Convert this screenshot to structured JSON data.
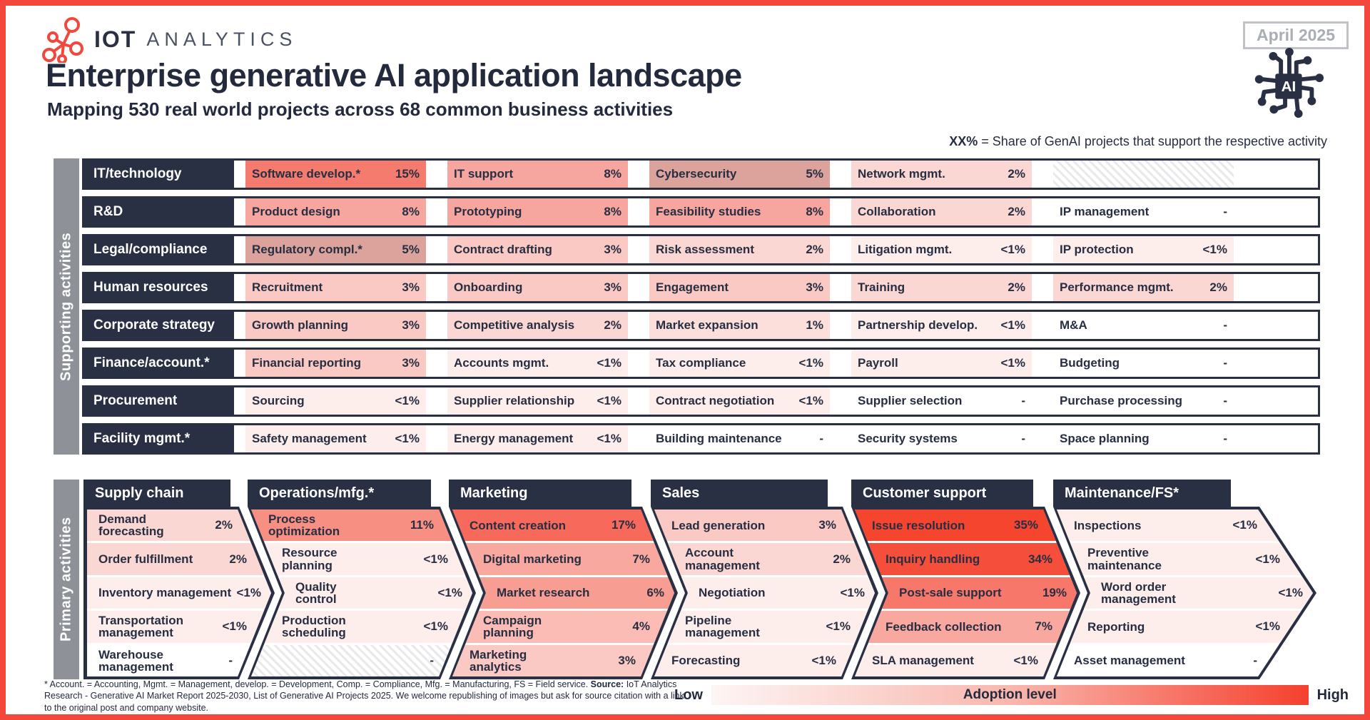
{
  "header": {
    "logo_iot": "IOT",
    "logo_analytics": "ANALYTICS",
    "badge": "April 2025",
    "title": "Enterprise generative AI application landscape",
    "subtitle": "Mapping 530 real world projects across 68 common business activities",
    "note_bold": "XX%",
    "note_rest": " = Share of GenAI projects that support the respective activity",
    "ai_chip_label": "AI"
  },
  "colors": {
    "frame_red": "#f4473b",
    "navy": "#2a3044",
    "gray_bar": "#8e9298",
    "badge_gray": "#a9adb4",
    "legend_gradient_start": "#fdf5f4",
    "legend_gradient_end": "#f5402e"
  },
  "palette": {
    "35%": "#f5452f",
    "34%": "#f54e3a",
    "19%": "#f7786a",
    "17%": "#f6695b",
    "15%": "#f57b6e",
    "11%": "#f79083",
    "8%": "#f6a59f",
    "7%": "#f8a89f",
    "6%": "#f89d92",
    "5%": "#dba39b",
    "4%": "#fabcb5",
    "3%": "#fac9c3",
    "2%": "#fbd7d3",
    "1%": "#fcdfdb",
    "<1%": "#fdedeb",
    "-": "#ffffff"
  },
  "supporting": {
    "section_label": "Supporting activities",
    "rows": [
      {
        "label": "IT/technology",
        "cells": [
          {
            "name": "Software develop.*",
            "value": "15%"
          },
          {
            "name": "IT support",
            "value": "8%"
          },
          {
            "name": "Cybersecurity",
            "value": "5%"
          },
          {
            "name": "Network mgmt.",
            "value": "2%"
          },
          {
            "hatch": true
          }
        ]
      },
      {
        "label": "R&D",
        "cells": [
          {
            "name": "Product design",
            "value": "8%"
          },
          {
            "name": "Prototyping",
            "value": "8%"
          },
          {
            "name": "Feasibility studies",
            "value": "8%"
          },
          {
            "name": "Collaboration",
            "value": "2%"
          },
          {
            "name": "IP management",
            "value": "-"
          }
        ]
      },
      {
        "label": "Legal/compliance",
        "cells": [
          {
            "name": "Regulatory compl.*",
            "value": "5%"
          },
          {
            "name": "Contract drafting",
            "value": "3%"
          },
          {
            "name": "Risk assessment",
            "value": "2%"
          },
          {
            "name": "Litigation mgmt.",
            "value": "<1%"
          },
          {
            "name": "IP protection",
            "value": "<1%"
          }
        ]
      },
      {
        "label": "Human resources",
        "cells": [
          {
            "name": "Recruitment",
            "value": "3%"
          },
          {
            "name": "Onboarding",
            "value": "3%"
          },
          {
            "name": "Engagement",
            "value": "3%"
          },
          {
            "name": "Training",
            "value": "2%"
          },
          {
            "name": "Performance mgmt.",
            "value": "2%"
          }
        ]
      },
      {
        "label": "Corporate strategy",
        "cells": [
          {
            "name": "Growth planning",
            "value": "3%"
          },
          {
            "name": "Competitive analysis",
            "value": "2%"
          },
          {
            "name": "Market expansion",
            "value": "1%"
          },
          {
            "name": "Partnership develop.",
            "value": "<1%"
          },
          {
            "name": "M&A",
            "value": "-"
          }
        ]
      },
      {
        "label": "Finance/account.*",
        "cells": [
          {
            "name": "Financial reporting",
            "value": "3%"
          },
          {
            "name": "Accounts mgmt.",
            "value": "<1%"
          },
          {
            "name": "Tax compliance",
            "value": "<1%"
          },
          {
            "name": "Payroll",
            "value": "<1%"
          },
          {
            "name": "Budgeting",
            "value": "-"
          }
        ]
      },
      {
        "label": "Procurement",
        "cells": [
          {
            "name": "Sourcing",
            "value": "<1%"
          },
          {
            "name": "Supplier relationship",
            "value": "<1%"
          },
          {
            "name": "Contract negotiation",
            "value": "<1%"
          },
          {
            "name": "Supplier selection",
            "value": "-"
          },
          {
            "name": "Purchase processing",
            "value": "-"
          }
        ]
      },
      {
        "label": "Facility mgmt.*",
        "cells": [
          {
            "name": "Safety management",
            "value": "<1%"
          },
          {
            "name": "Energy management",
            "value": "<1%"
          },
          {
            "name": "Building maintenance",
            "value": "-"
          },
          {
            "name": "Security systems",
            "value": "-"
          },
          {
            "name": "Space planning",
            "value": "-"
          }
        ]
      }
    ]
  },
  "primary": {
    "section_label": "Primary activities",
    "columns": [
      {
        "header": "Supply chain",
        "rows": [
          {
            "name": "Demand\nforecasting",
            "value": "2%"
          },
          {
            "name": "Order fulfillment",
            "value": "2%"
          },
          {
            "name": "Inventory management",
            "value": "<1%"
          },
          {
            "name": "Transportation\nmanagement",
            "value": "<1%"
          },
          {
            "name": "Warehouse\nmanagement",
            "value": "-"
          }
        ]
      },
      {
        "header": "Operations/mfg.*",
        "rows": [
          {
            "name": "Process\noptimization",
            "value": "11%"
          },
          {
            "name": "Resource\nplanning",
            "value": "<1%"
          },
          {
            "name": "Quality\ncontrol",
            "value": "<1%"
          },
          {
            "name": "Production\nscheduling",
            "value": "<1%"
          },
          {
            "name": "",
            "value": "-",
            "hatch": true
          }
        ]
      },
      {
        "header": "Marketing",
        "rows": [
          {
            "name": "Content creation",
            "value": "17%"
          },
          {
            "name": "Digital marketing",
            "value": "7%"
          },
          {
            "name": "Market research",
            "value": "6%"
          },
          {
            "name": "Campaign\nplanning",
            "value": "4%"
          },
          {
            "name": "Marketing\nanalytics",
            "value": "3%"
          }
        ]
      },
      {
        "header": "Sales",
        "rows": [
          {
            "name": "Lead generation",
            "value": "3%"
          },
          {
            "name": "Account\nmanagement",
            "value": "2%"
          },
          {
            "name": "Negotiation",
            "value": "<1%"
          },
          {
            "name": "Pipeline\nmanagement",
            "value": "<1%"
          },
          {
            "name": "Forecasting",
            "value": "<1%"
          }
        ]
      },
      {
        "header": "Customer support",
        "rows": [
          {
            "name": "Issue resolution",
            "value": "35%"
          },
          {
            "name": "Inquiry handling",
            "value": "34%"
          },
          {
            "name": "Post-sale support",
            "value": "19%"
          },
          {
            "name": "Feedback collection",
            "value": "7%"
          },
          {
            "name": "SLA management",
            "value": "<1%"
          }
        ]
      },
      {
        "header": "Maintenance/FS*",
        "rows": [
          {
            "name": "Inspections",
            "value": "<1%"
          },
          {
            "name": "Preventive\nmaintenance",
            "value": "<1%"
          },
          {
            "name": "Word order\nmanagement",
            "value": "<1%"
          },
          {
            "name": "Reporting",
            "value": "<1%"
          },
          {
            "name": "Asset management",
            "value": "-"
          }
        ]
      }
    ]
  },
  "footer": {
    "footnote_lead": "* Account. = Accounting, Mgmt. = Management, develop. = Development, Comp. = Compliance, Mfg. = Manufacturing, FS = Field service. ",
    "source_label": "Source:",
    "footnote_tail": " IoT Analytics Research - Generative AI Market Report 2025-2030, List of Generative AI Projects 2025. We welcome republishing of images but ask for source citation with a link to the original post and company website.",
    "legend_low": "Low",
    "legend_label": "Adoption level",
    "legend_high": "High"
  },
  "chart_data": {
    "type": "heatmap",
    "title": "Enterprise generative AI application landscape",
    "subtitle": "Mapping 530 real world projects across 68 common business activities",
    "unit_note": "XX% = Share of GenAI projects that support the respective activity",
    "legend": {
      "label": "Adoption level",
      "min_label": "Low",
      "max_label": "High"
    },
    "supporting_activities": {
      "IT/technology": {
        "Software develop.*": "15%",
        "IT support": "8%",
        "Cybersecurity": "5%",
        "Network mgmt.": "2%"
      },
      "R&D": {
        "Product design": "8%",
        "Prototyping": "8%",
        "Feasibility studies": "8%",
        "Collaboration": "2%",
        "IP management": null
      },
      "Legal/compliance": {
        "Regulatory compl.*": "5%",
        "Contract drafting": "3%",
        "Risk assessment": "2%",
        "Litigation mgmt.": "<1%",
        "IP protection": "<1%"
      },
      "Human resources": {
        "Recruitment": "3%",
        "Onboarding": "3%",
        "Engagement": "3%",
        "Training": "2%",
        "Performance mgmt.": "2%"
      },
      "Corporate strategy": {
        "Growth planning": "3%",
        "Competitive analysis": "2%",
        "Market expansion": "1%",
        "Partnership develop.": "<1%",
        "M&A": null
      },
      "Finance/account.*": {
        "Financial reporting": "3%",
        "Accounts mgmt.": "<1%",
        "Tax compliance": "<1%",
        "Payroll": "<1%",
        "Budgeting": null
      },
      "Procurement": {
        "Sourcing": "<1%",
        "Supplier relationship": "<1%",
        "Contract negotiation": "<1%",
        "Supplier selection": null,
        "Purchase processing": null
      },
      "Facility mgmt.*": {
        "Safety management": "<1%",
        "Energy management": "<1%",
        "Building maintenance": null,
        "Security systems": null,
        "Space planning": null
      }
    },
    "primary_activities": {
      "Supply chain": {
        "Demand forecasting": "2%",
        "Order fulfillment": "2%",
        "Inventory management": "<1%",
        "Transportation management": "<1%",
        "Warehouse management": null
      },
      "Operations/mfg.*": {
        "Process optimization": "11%",
        "Resource planning": "<1%",
        "Quality control": "<1%",
        "Production scheduling": "<1%"
      },
      "Marketing": {
        "Content creation": "17%",
        "Digital marketing": "7%",
        "Market research": "6%",
        "Campaign planning": "4%",
        "Marketing analytics": "3%"
      },
      "Sales": {
        "Lead generation": "3%",
        "Account management": "2%",
        "Negotiation": "<1%",
        "Pipeline management": "<1%",
        "Forecasting": "<1%"
      },
      "Customer support": {
        "Issue resolution": "35%",
        "Inquiry handling": "34%",
        "Post-sale support": "19%",
        "Feedback collection": "7%",
        "SLA management": "<1%"
      },
      "Maintenance/FS*": {
        "Inspections": "<1%",
        "Preventive maintenance": "<1%",
        "Word order management": "<1%",
        "Reporting": "<1%",
        "Asset management": null
      }
    }
  }
}
